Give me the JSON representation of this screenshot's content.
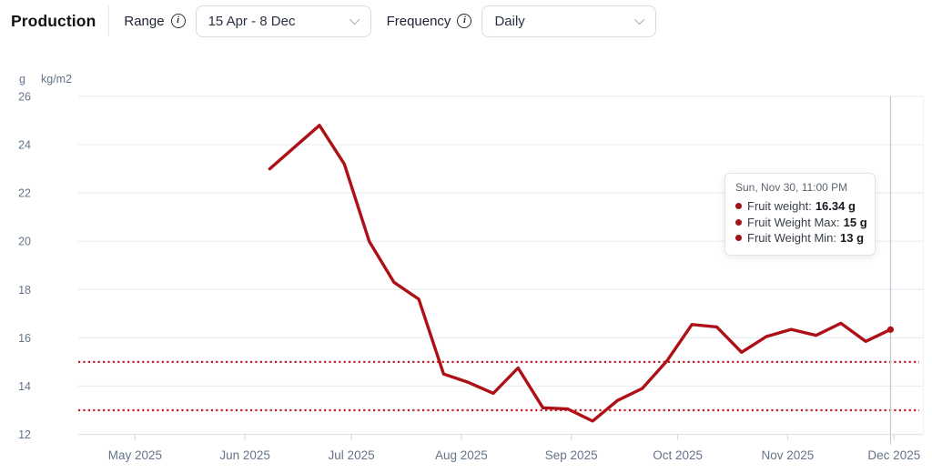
{
  "header": {
    "title": "Production",
    "range_label": "Range",
    "range_value": "15 Apr - 8 Dec",
    "frequency_label": "Frequency",
    "frequency_value": "Daily",
    "info_glyph": "i"
  },
  "tooltip": {
    "title": "Sun, Nov 30, 11:00 PM",
    "rows": [
      {
        "label": "Fruit weight:",
        "value": "16.34 g"
      },
      {
        "label": "Fruit Weight Max:",
        "value": "15 g"
      },
      {
        "label": "Fruit Weight Min:",
        "value": "13 g"
      }
    ]
  },
  "colors": {
    "line": "#ad1016",
    "threshold": "#c41c20",
    "grid": "#e9eef4",
    "axis_line": "#dfe5eb",
    "tick_mark": "#ccd4dc",
    "axis_text": "#64748b",
    "cursor": "#c6ccd4",
    "plot_right_border": "#eef2f7"
  },
  "chart_data": {
    "type": "line",
    "title": "Production",
    "unit_labels": [
      "g",
      "kg/m2"
    ],
    "xlabel": "",
    "ylabel": "g",
    "ylim": [
      12,
      26
    ],
    "grid": "horizontal-only",
    "legend": "none",
    "y_ticks": [
      26,
      24,
      22,
      20,
      18,
      16,
      14,
      12
    ],
    "x_domain": [
      "2025-04-15",
      "2025-12-09"
    ],
    "x_ticks": [
      {
        "date": "2025-05-01",
        "label": "May 2025"
      },
      {
        "date": "2025-06-01",
        "label": "Jun 2025"
      },
      {
        "date": "2025-07-01",
        "label": "Jul 2025"
      },
      {
        "date": "2025-08-01",
        "label": "Aug 2025"
      },
      {
        "date": "2025-09-01",
        "label": "Sep 2025"
      },
      {
        "date": "2025-10-01",
        "label": "Oct 2025"
      },
      {
        "date": "2025-11-01",
        "label": "Nov 2025"
      },
      {
        "date": "2025-12-01",
        "label": "Dec 2025"
      }
    ],
    "series": [
      {
        "name": "Fruit weight",
        "unit": "g",
        "points": [
          [
            "2025-06-08",
            23.0
          ],
          [
            "2025-06-15",
            23.9
          ],
          [
            "2025-06-22",
            24.8
          ],
          [
            "2025-06-29",
            23.2
          ],
          [
            "2025-07-06",
            20.0
          ],
          [
            "2025-07-13",
            18.3
          ],
          [
            "2025-07-20",
            17.6
          ],
          [
            "2025-07-27",
            14.5
          ],
          [
            "2025-08-03",
            14.15
          ],
          [
            "2025-08-10",
            13.7
          ],
          [
            "2025-08-17",
            14.75
          ],
          [
            "2025-08-24",
            13.1
          ],
          [
            "2025-08-31",
            13.05
          ],
          [
            "2025-09-07",
            12.55
          ],
          [
            "2025-09-14",
            13.4
          ],
          [
            "2025-09-21",
            13.9
          ],
          [
            "2025-09-28",
            15.05
          ],
          [
            "2025-10-05",
            16.55
          ],
          [
            "2025-10-12",
            16.45
          ],
          [
            "2025-10-19",
            15.4
          ],
          [
            "2025-10-26",
            16.05
          ],
          [
            "2025-11-02",
            16.35
          ],
          [
            "2025-11-09",
            16.1
          ],
          [
            "2025-11-16",
            16.6
          ],
          [
            "2025-11-23",
            15.85
          ],
          [
            "2025-11-30",
            16.34
          ]
        ]
      }
    ],
    "thresholds": [
      {
        "name": "Fruit Weight Max",
        "value": 15
      },
      {
        "name": "Fruit Weight Min",
        "value": 13
      }
    ],
    "cursor_date": "2025-11-30"
  }
}
